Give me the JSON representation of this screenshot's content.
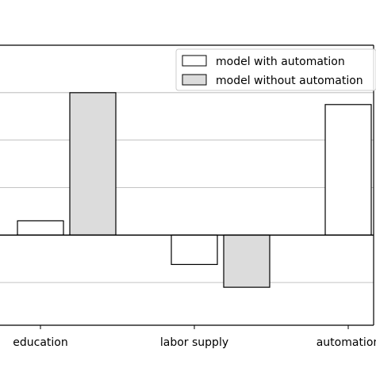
{
  "chart_data": {
    "type": "bar",
    "categories": [
      "education",
      "labor supply",
      "automation"
    ],
    "series": [
      {
        "name": "model with automation",
        "values": [
          0.3,
          -0.62,
          2.75
        ],
        "color": "#ffffff"
      },
      {
        "name": "model without automation",
        "values": [
          3.0,
          -1.1,
          null
        ],
        "color": "#dcdcdc"
      }
    ],
    "ylim": [
      -1.9,
      4.0
    ],
    "grid": true,
    "legend_position": "top-right",
    "title": "",
    "xlabel": "",
    "ylabel": ""
  }
}
